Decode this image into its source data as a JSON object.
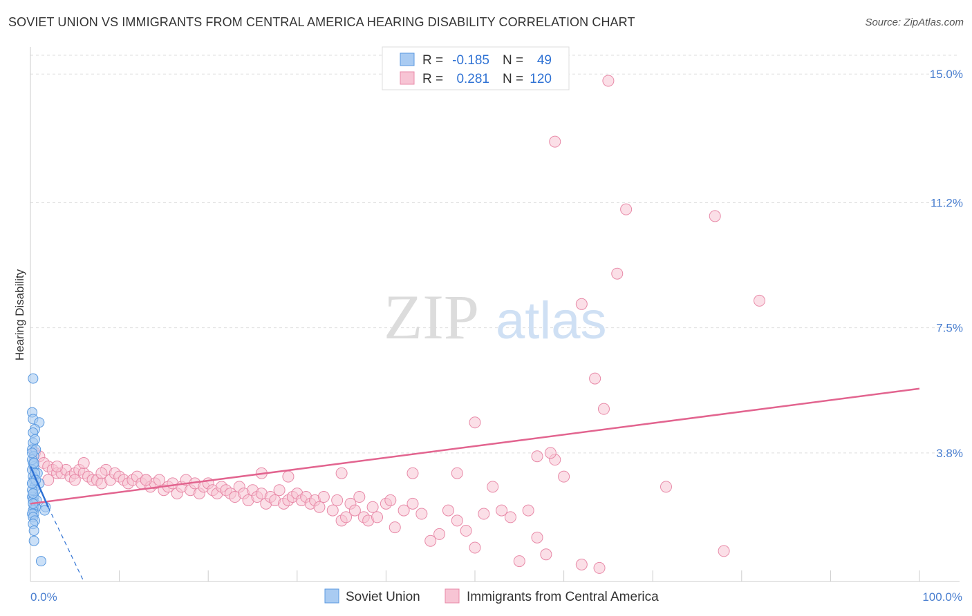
{
  "header": {
    "title": "SOVIET UNION VS IMMIGRANTS FROM CENTRAL AMERICA HEARING DISABILITY CORRELATION CHART",
    "source": "Source: ZipAtlas.com"
  },
  "watermark": {
    "zip": "ZIP",
    "atlas": "atlas"
  },
  "legend_box": {
    "rows": [
      {
        "r_label": "R =",
        "r_value": "-0.185",
        "n_label": "N =",
        "n_value": "49"
      },
      {
        "r_label": "R =",
        "r_value": "0.281",
        "n_label": "N =",
        "n_value": "120"
      }
    ]
  },
  "bottom_legend": {
    "items": [
      {
        "label": "Soviet Union"
      },
      {
        "label": "Immigrants from Central America"
      }
    ]
  },
  "colors": {
    "blue_fill": "#a9cbf2",
    "blue_stroke": "#5b9ae0",
    "blue_line": "#2f72d4",
    "pink_fill": "#f7c4d4",
    "pink_stroke": "#e88aa8",
    "pink_line": "#e2648f",
    "tick_text": "#4a7fd0",
    "grid": "#dddddd"
  },
  "chart_data": {
    "type": "scatter",
    "title": "SOVIET UNION VS IMMIGRANTS FROM CENTRAL AMERICA HEARING DISABILITY CORRELATION CHART",
    "xlabel": "",
    "ylabel": "Hearing Disability",
    "xlim": [
      0,
      100
    ],
    "ylim": [
      0,
      15.8
    ],
    "x_tick_labels": [
      "0.0%",
      "100.0%"
    ],
    "y_ticks": [
      3.8,
      7.5,
      11.2,
      15.0
    ],
    "y_tick_labels": [
      "3.8%",
      "7.5%",
      "11.2%",
      "15.0%"
    ],
    "grid": true,
    "series": [
      {
        "name": "Soviet Union",
        "r": -0.185,
        "n": 49,
        "points": [
          [
            0.3,
            6.0
          ],
          [
            0.2,
            5.0
          ],
          [
            0.3,
            4.8
          ],
          [
            1.0,
            4.7
          ],
          [
            0.5,
            4.5
          ],
          [
            0.3,
            4.4
          ],
          [
            0.3,
            4.1
          ],
          [
            0.2,
            3.9
          ],
          [
            0.6,
            3.9
          ],
          [
            0.4,
            3.7
          ],
          [
            0.3,
            3.5
          ],
          [
            0.4,
            3.4
          ],
          [
            0.2,
            3.3
          ],
          [
            0.8,
            3.2
          ],
          [
            0.3,
            3.1
          ],
          [
            0.4,
            3.0
          ],
          [
            0.2,
            2.9
          ],
          [
            1.0,
            2.9
          ],
          [
            0.5,
            2.8
          ],
          [
            0.6,
            2.7
          ],
          [
            0.3,
            2.6
          ],
          [
            0.4,
            2.5
          ],
          [
            0.2,
            2.5
          ],
          [
            0.3,
            2.4
          ],
          [
            0.5,
            2.3
          ],
          [
            0.4,
            2.2
          ],
          [
            0.6,
            2.2
          ],
          [
            0.3,
            2.1
          ],
          [
            0.4,
            2.0
          ],
          [
            0.2,
            2.0
          ],
          [
            1.7,
            2.2
          ],
          [
            1.6,
            2.1
          ],
          [
            0.3,
            1.9
          ],
          [
            0.5,
            1.8
          ],
          [
            0.3,
            1.7
          ],
          [
            0.4,
            1.5
          ],
          [
            0.2,
            3.6
          ],
          [
            0.5,
            3.2
          ],
          [
            0.2,
            2.7
          ],
          [
            0.7,
            2.4
          ],
          [
            0.4,
            1.2
          ],
          [
            1.2,
            0.6
          ],
          [
            0.3,
            2.3
          ],
          [
            0.6,
            3.0
          ],
          [
            0.2,
            3.8
          ],
          [
            0.5,
            4.2
          ],
          [
            0.4,
            3.5
          ],
          [
            0.2,
            2.9
          ],
          [
            0.3,
            2.6
          ]
        ],
        "trend": {
          "x": [
            0,
            2.0
          ],
          "y": [
            3.4,
            2.2
          ]
        },
        "trend_extrapolated": {
          "x": [
            2.0,
            6.0
          ],
          "y": [
            2.2,
            0.0
          ]
        }
      },
      {
        "name": "Immigrants from Central America",
        "r": 0.281,
        "n": 120,
        "points": [
          [
            0.5,
            3.8
          ],
          [
            1.0,
            3.7
          ],
          [
            1.5,
            3.5
          ],
          [
            2.0,
            3.4
          ],
          [
            2.5,
            3.3
          ],
          [
            3.0,
            3.2
          ],
          [
            3.5,
            3.2
          ],
          [
            4.0,
            3.3
          ],
          [
            4.5,
            3.1
          ],
          [
            5.0,
            3.2
          ],
          [
            5.5,
            3.3
          ],
          [
            6.0,
            3.2
          ],
          [
            6.5,
            3.1
          ],
          [
            7.0,
            3.0
          ],
          [
            7.5,
            3.0
          ],
          [
            8.0,
            2.9
          ],
          [
            8.5,
            3.3
          ],
          [
            9.0,
            3.0
          ],
          [
            9.5,
            3.2
          ],
          [
            10.0,
            3.1
          ],
          [
            10.5,
            3.0
          ],
          [
            11.0,
            2.9
          ],
          [
            11.5,
            3.0
          ],
          [
            12.0,
            3.1
          ],
          [
            12.5,
            2.9
          ],
          [
            13.0,
            3.0
          ],
          [
            13.5,
            2.8
          ],
          [
            14.0,
            2.9
          ],
          [
            14.5,
            3.0
          ],
          [
            15.0,
            2.7
          ],
          [
            15.5,
            2.8
          ],
          [
            16.0,
            2.9
          ],
          [
            16.5,
            2.6
          ],
          [
            17.0,
            2.8
          ],
          [
            17.5,
            3.0
          ],
          [
            18.0,
            2.7
          ],
          [
            18.5,
            2.9
          ],
          [
            19.0,
            2.6
          ],
          [
            19.5,
            2.8
          ],
          [
            20.0,
            2.9
          ],
          [
            20.5,
            2.7
          ],
          [
            21.0,
            2.6
          ],
          [
            21.5,
            2.8
          ],
          [
            22.0,
            2.7
          ],
          [
            22.5,
            2.6
          ],
          [
            23.0,
            2.5
          ],
          [
            23.5,
            2.8
          ],
          [
            24.0,
            2.6
          ],
          [
            24.5,
            2.4
          ],
          [
            25.0,
            2.7
          ],
          [
            25.5,
            2.5
          ],
          [
            26.0,
            2.6
          ],
          [
            26.5,
            2.3
          ],
          [
            27.0,
            2.5
          ],
          [
            27.5,
            2.4
          ],
          [
            28.0,
            2.7
          ],
          [
            28.5,
            2.3
          ],
          [
            29.0,
            2.4
          ],
          [
            29.5,
            2.5
          ],
          [
            30.0,
            2.6
          ],
          [
            30.5,
            2.4
          ],
          [
            31.0,
            2.5
          ],
          [
            31.5,
            2.3
          ],
          [
            32.0,
            2.4
          ],
          [
            32.5,
            2.2
          ],
          [
            33.0,
            2.5
          ],
          [
            34.0,
            2.1
          ],
          [
            34.5,
            2.4
          ],
          [
            35.0,
            1.8
          ],
          [
            35.5,
            1.9
          ],
          [
            36.0,
            2.3
          ],
          [
            36.5,
            2.1
          ],
          [
            37.0,
            2.5
          ],
          [
            37.5,
            1.9
          ],
          [
            38.0,
            1.8
          ],
          [
            38.5,
            2.2
          ],
          [
            39.0,
            1.9
          ],
          [
            40.0,
            2.3
          ],
          [
            40.5,
            2.4
          ],
          [
            41.0,
            1.6
          ],
          [
            42.0,
            2.1
          ],
          [
            43.0,
            2.3
          ],
          [
            44.0,
            2.0
          ],
          [
            45.0,
            1.2
          ],
          [
            46.0,
            1.4
          ],
          [
            47.0,
            2.1
          ],
          [
            48.0,
            1.8
          ],
          [
            49.0,
            1.5
          ],
          [
            50.0,
            1.0
          ],
          [
            51.0,
            2.0
          ],
          [
            52.0,
            2.8
          ],
          [
            53.0,
            2.1
          ],
          [
            54.0,
            1.9
          ],
          [
            55.0,
            0.6
          ],
          [
            56.0,
            2.1
          ],
          [
            57.0,
            1.3
          ],
          [
            58.0,
            0.8
          ],
          [
            60.0,
            3.1
          ],
          [
            62.0,
            0.5
          ],
          [
            64.0,
            0.4
          ],
          [
            3.0,
            3.4
          ],
          [
            6.0,
            3.5
          ],
          [
            8.0,
            3.2
          ],
          [
            13.0,
            3.0
          ],
          [
            26.0,
            3.2
          ],
          [
            29.0,
            3.1
          ],
          [
            35.0,
            3.2
          ],
          [
            43.0,
            3.2
          ],
          [
            59.0,
            3.6
          ],
          [
            48.0,
            3.2
          ],
          [
            62.0,
            8.2
          ],
          [
            66.0,
            9.1
          ],
          [
            63.5,
            6.0
          ],
          [
            64.5,
            5.1
          ],
          [
            57.0,
            3.7
          ],
          [
            58.5,
            3.8
          ],
          [
            50.0,
            4.7
          ],
          [
            67.0,
            11.0
          ],
          [
            77.0,
            10.8
          ],
          [
            82.0,
            8.3
          ],
          [
            59.0,
            13.0
          ],
          [
            65.0,
            14.8
          ],
          [
            71.5,
            2.8
          ],
          [
            78.0,
            0.9
          ],
          [
            2.0,
            3.0
          ],
          [
            5.0,
            3.0
          ]
        ],
        "trend": {
          "x": [
            0,
            100
          ],
          "y": [
            2.3,
            5.7
          ]
        }
      }
    ]
  }
}
